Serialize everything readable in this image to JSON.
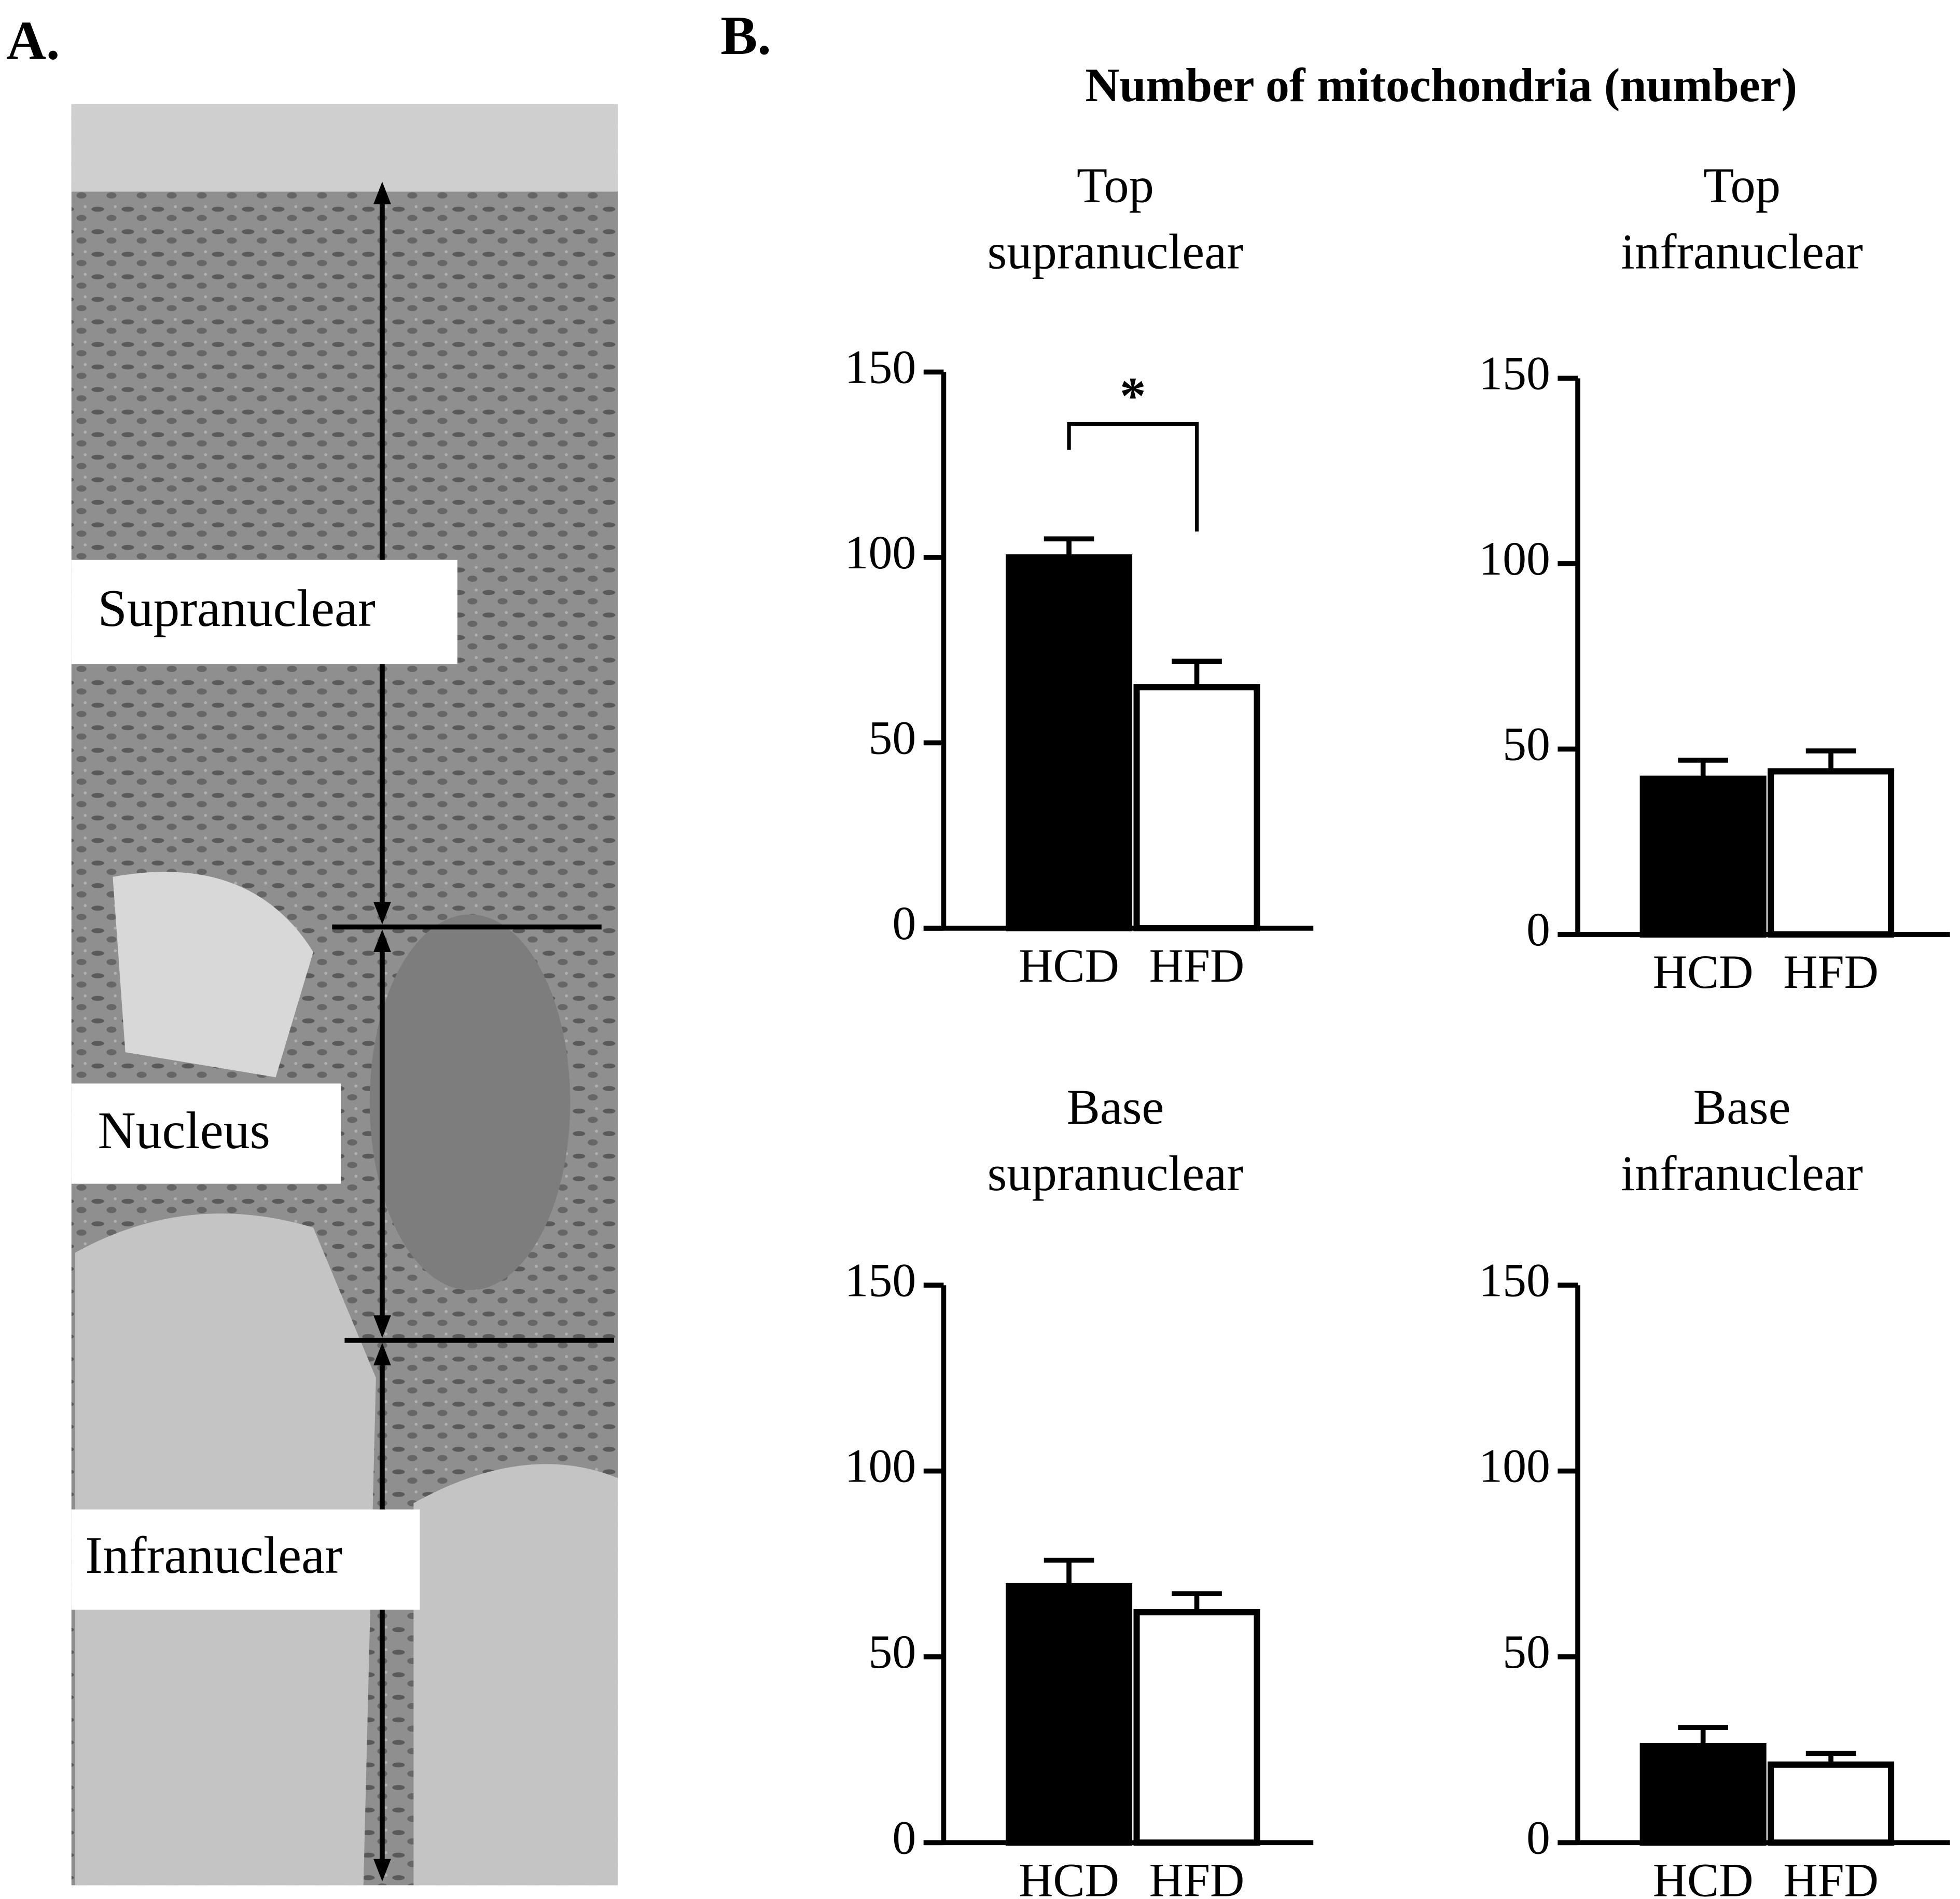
{
  "figure": {
    "panel_a_label": "A.",
    "panel_b_label": "B.",
    "title": "Number of mitochondria (number)",
    "micrograph_labels": [
      "Supranuclear",
      "Nucleus",
      "Infranuclear"
    ]
  },
  "chart_data": [
    {
      "type": "bar",
      "title": [
        "Top",
        "supranuclear"
      ],
      "categories": [
        "HCD",
        "HFD"
      ],
      "values": [
        100,
        65
      ],
      "errors": [
        5,
        7
      ],
      "colors": [
        "#000000",
        "#ffffff"
      ],
      "ylim": [
        0,
        150
      ],
      "yticks": [
        0,
        50,
        100,
        150
      ],
      "annotation": "*"
    },
    {
      "type": "bar",
      "title": [
        "Top",
        "infranuclear"
      ],
      "categories": [
        "HCD",
        "HFD"
      ],
      "values": [
        42,
        44
      ],
      "errors": [
        5,
        5.5
      ],
      "colors": [
        "#000000",
        "#ffffff"
      ],
      "ylim": [
        0,
        150
      ],
      "yticks": [
        0,
        50,
        100,
        150
      ]
    },
    {
      "type": "bar",
      "title": [
        "Base",
        "supranuclear"
      ],
      "categories": [
        "HCD",
        "HFD"
      ],
      "values": [
        69,
        62
      ],
      "errors": [
        7,
        5
      ],
      "colors": [
        "#000000",
        "#ffffff"
      ],
      "ylim": [
        0,
        150
      ],
      "yticks": [
        0,
        50,
        100,
        150
      ]
    },
    {
      "type": "bar",
      "title": [
        "Base",
        "infranuclear"
      ],
      "categories": [
        "HCD",
        "HFD"
      ],
      "values": [
        26,
        21
      ],
      "errors": [
        5,
        3
      ],
      "colors": [
        "#000000",
        "#ffffff"
      ],
      "ylim": [
        0,
        150
      ],
      "yticks": [
        0,
        50,
        100,
        150
      ]
    }
  ]
}
